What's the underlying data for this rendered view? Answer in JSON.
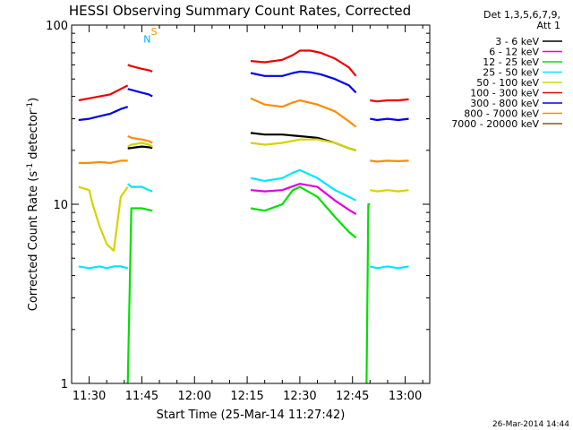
{
  "chart_data": {
    "type": "line",
    "title": "HESSI Observing Summary Count Rates, Corrected",
    "xlabel": "Start Time (25-Mar-14 11:27:42)",
    "ylabel": "Corrected Count Rate (s",
    "ylabel_sup1": "-1",
    "ylabel_mid": " detector",
    "ylabel_sup2": "-1",
    "ylabel_end": ")",
    "y_scale": "log",
    "ylim": [
      1,
      100
    ],
    "xlim": [
      "11:25",
      "13:07"
    ],
    "yticks": [
      {
        "value": 1,
        "label": "1"
      },
      {
        "value": 10,
        "label": "10"
      },
      {
        "value": 100,
        "label": "100"
      }
    ],
    "xticks": [
      {
        "value": "11:30",
        "label": "11:30"
      },
      {
        "value": "11:45",
        "label": "11:45"
      },
      {
        "value": "12:00",
        "label": "12:00"
      },
      {
        "value": "12:15",
        "label": "12:15"
      },
      {
        "value": "12:30",
        "label": "12:30"
      },
      {
        "value": "12:45",
        "label": "12:45"
      },
      {
        "value": "13:00",
        "label": "13:00"
      }
    ],
    "legend": {
      "placement": "right",
      "header": [
        "Det 1,3,5,6,7,9,",
        "Att 1"
      ],
      "entries": [
        {
          "label": "3 - 6 keV",
          "color": "#000000"
        },
        {
          "label": "6 - 12 keV",
          "color": "#e000e0"
        },
        {
          "label": "12 - 25 keV",
          "color": "#00e000"
        },
        {
          "label": "25 - 50 keV",
          "color": "#00e6ff"
        },
        {
          "label": "50 - 100 keV",
          "color": "#d4d400"
        },
        {
          "label": "100 - 300 keV",
          "color": "#ee0000"
        },
        {
          "label": "300 - 800 keV",
          "color": "#0000ee"
        },
        {
          "label": "800 - 7000 keV",
          "color": "#ff8c00"
        },
        {
          "label": "7000 - 20000 keV",
          "color": "#a05000"
        }
      ]
    },
    "series": [
      {
        "name": "3 - 6 keV",
        "color": "#000000",
        "segments": [
          {
            "x": [
              "11:41",
              "11:45",
              "11:47",
              "11:48"
            ],
            "y": [
              20.5,
              21,
              20.8,
              20.6
            ]
          },
          {
            "x": [
              "12:16",
              "12:20",
              "12:25",
              "12:30",
              "12:35",
              "12:40",
              "12:44",
              "12:46"
            ],
            "y": [
              25,
              24.5,
              24.5,
              24,
              23.5,
              22,
              20.5,
              20
            ]
          }
        ]
      },
      {
        "name": "6 - 12 keV",
        "color": "#e000e0",
        "segments": [
          {
            "x": [
              "12:16",
              "12:20",
              "12:25",
              "12:30",
              "12:35",
              "12:40",
              "12:44",
              "12:46"
            ],
            "y": [
              12,
              11.8,
              12,
              13,
              12.5,
              10.5,
              9.3,
              8.8
            ]
          }
        ]
      },
      {
        "name": "12 - 25 keV",
        "color": "#00e000",
        "segments": [
          {
            "x": [
              "11:41",
              "11:42",
              "11:45",
              "11:47",
              "11:48"
            ],
            "y": [
              1,
              9.5,
              9.5,
              9.3,
              9.2
            ]
          },
          {
            "x": [
              "12:16",
              "12:20",
              "12:25",
              "12:28",
              "12:30",
              "12:35",
              "12:40",
              "12:44",
              "12:46"
            ],
            "y": [
              9.5,
              9.2,
              10,
              12,
              12.5,
              11,
              8.5,
              7,
              6.5
            ]
          },
          {
            "x": [
              "12:49",
              "12:49.5",
              "12:50"
            ],
            "y": [
              1,
              10,
              10
            ]
          }
        ]
      },
      {
        "name": "25 - 50 keV",
        "color": "#00e6ff",
        "segments": [
          {
            "x": [
              "11:27",
              "11:30",
              "11:33",
              "11:35",
              "11:37",
              "11:39",
              "11:41"
            ],
            "y": [
              4.5,
              4.4,
              4.5,
              4.4,
              4.5,
              4.5,
              4.4
            ]
          },
          {
            "x": [
              "11:41",
              "11:42",
              "11:45",
              "11:47",
              "11:48"
            ],
            "y": [
              13,
              12.5,
              12.5,
              12,
              11.8
            ]
          },
          {
            "x": [
              "12:16",
              "12:20",
              "12:25",
              "12:28",
              "12:30",
              "12:35",
              "12:40",
              "12:44",
              "12:46"
            ],
            "y": [
              14,
              13.5,
              14,
              15,
              15.5,
              14,
              12,
              11,
              10.5
            ]
          },
          {
            "x": [
              "12:50",
              "12:52",
              "12:55",
              "12:58",
              "13:01"
            ],
            "y": [
              4.5,
              4.4,
              4.5,
              4.4,
              4.5
            ]
          }
        ]
      },
      {
        "name": "50 - 100 keV",
        "color": "#d4d400",
        "segments": [
          {
            "x": [
              "11:27",
              "11:30",
              "11:31",
              "11:33",
              "11:35",
              "11:37",
              "11:39",
              "11:41"
            ],
            "y": [
              12.5,
              12,
              10,
              7.5,
              6,
              5.5,
              11,
              12.5
            ]
          },
          {
            "x": [
              "11:41",
              "11:42",
              "11:45",
              "11:47",
              "11:48"
            ],
            "y": [
              21,
              21.5,
              22,
              21.5,
              21
            ]
          },
          {
            "x": [
              "12:16",
              "12:20",
              "12:25",
              "12:30",
              "12:35",
              "12:40",
              "12:44",
              "12:46"
            ],
            "y": [
              22,
              21.5,
              22,
              23,
              23,
              22,
              20.5,
              20
            ]
          },
          {
            "x": [
              "12:50",
              "12:52",
              "12:55",
              "12:58",
              "13:01"
            ],
            "y": [
              12,
              11.8,
              12,
              11.8,
              12
            ]
          }
        ]
      },
      {
        "name": "100 - 300 keV",
        "color": "#ee0000",
        "segments": [
          {
            "x": [
              "11:27",
              "11:30",
              "11:33",
              "11:36",
              "11:39",
              "11:41"
            ],
            "y": [
              38,
              39,
              40,
              41,
              44,
              46
            ]
          },
          {
            "x": [
              "11:41",
              "11:42",
              "11:45",
              "11:47",
              "11:48"
            ],
            "y": [
              60,
              59,
              57,
              56,
              55
            ]
          },
          {
            "x": [
              "12:16",
              "12:20",
              "12:25",
              "12:28",
              "12:30",
              "12:33",
              "12:36",
              "12:40",
              "12:44",
              "12:46"
            ],
            "y": [
              63,
              62,
              64,
              68,
              72,
              72,
              70,
              65,
              58,
              52
            ]
          },
          {
            "x": [
              "12:50",
              "12:52",
              "12:55",
              "12:58",
              "13:01"
            ],
            "y": [
              38,
              37.5,
              38,
              38,
              38.5
            ]
          }
        ]
      },
      {
        "name": "300 - 800 keV",
        "color": "#0000ee",
        "segments": [
          {
            "x": [
              "11:27",
              "11:30",
              "11:33",
              "11:36",
              "11:39",
              "11:41"
            ],
            "y": [
              29.5,
              30,
              31,
              32,
              34,
              35
            ]
          },
          {
            "x": [
              "11:41",
              "11:42",
              "11:45",
              "11:47",
              "11:48"
            ],
            "y": [
              44,
              43.5,
              42,
              41,
              40
            ]
          },
          {
            "x": [
              "12:16",
              "12:20",
              "12:25",
              "12:28",
              "12:30",
              "12:33",
              "12:36",
              "12:40",
              "12:44",
              "12:46"
            ],
            "y": [
              54,
              52,
              52,
              54,
              55,
              54.5,
              53,
              50,
              46,
              42
            ]
          },
          {
            "x": [
              "12:50",
              "12:52",
              "12:55",
              "12:58",
              "13:01"
            ],
            "y": [
              30,
              29.5,
              30,
              29.5,
              30
            ]
          }
        ]
      },
      {
        "name": "800 - 7000 keV",
        "color": "#ff8c00",
        "segments": [
          {
            "x": [
              "11:27",
              "11:30",
              "11:33",
              "11:36",
              "11:39",
              "11:41"
            ],
            "y": [
              17,
              17,
              17.2,
              17,
              17.5,
              17.5
            ]
          },
          {
            "x": [
              "11:41",
              "11:42",
              "11:45",
              "11:47",
              "11:48"
            ],
            "y": [
              24,
              23.5,
              23,
              22.5,
              22
            ]
          },
          {
            "x": [
              "12:16",
              "12:20",
              "12:25",
              "12:28",
              "12:30",
              "12:35",
              "12:40",
              "12:44",
              "12:46"
            ],
            "y": [
              39,
              36,
              35,
              37,
              38,
              36,
              33,
              29,
              27
            ]
          },
          {
            "x": [
              "12:50",
              "12:52",
              "12:55",
              "12:58",
              "13:01"
            ],
            "y": [
              17.5,
              17.3,
              17.5,
              17.4,
              17.5
            ]
          }
        ]
      },
      {
        "name": "7000 - 20000 keV",
        "color": "#a05000",
        "segments": []
      }
    ],
    "annotations": [
      {
        "text": "N",
        "x": "11:46.5",
        "y": 80,
        "color": "#00aaff"
      },
      {
        "text": "S",
        "x": "11:48.5",
        "y": 88,
        "color": "#ff8c00"
      }
    ],
    "footer": "26-Mar-2014 14:44"
  }
}
